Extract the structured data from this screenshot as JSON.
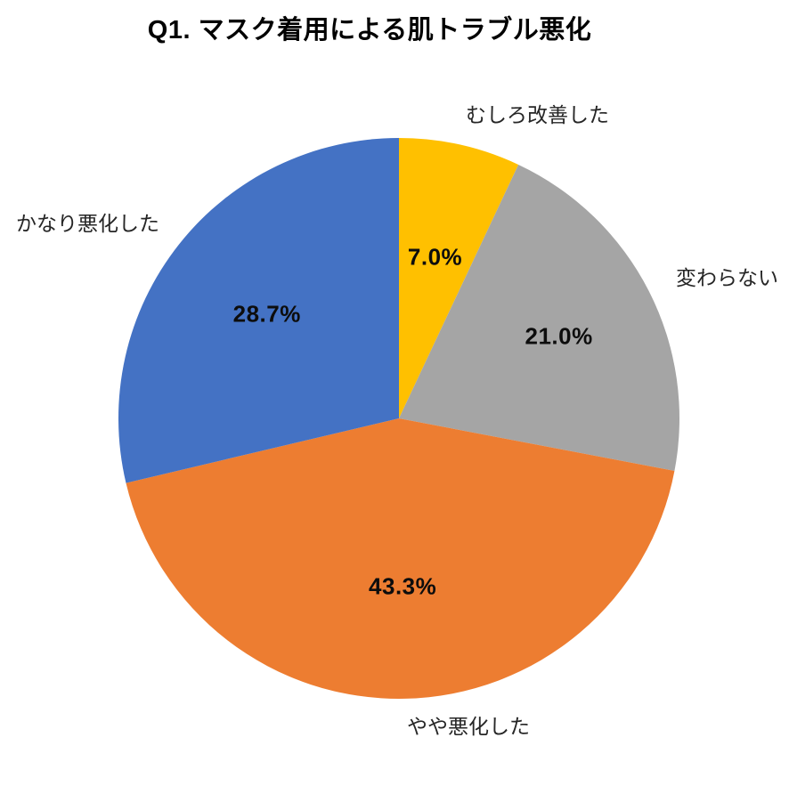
{
  "chart_data": {
    "type": "pie",
    "title": "Q1. マスク着用による肌トラブル悪化",
    "unit": "%",
    "start_angle_deg": 0,
    "direction": "clockwise",
    "legend": "none",
    "category_labels_position": "outside",
    "value_labels_position": "inside",
    "background_color": "#ffffff",
    "title_color": "#000000",
    "value_label_color": "#0d0d0d",
    "slices": [
      {
        "label": "むしろ改善した",
        "value": 7.0,
        "value_label": "7.0%",
        "color": "#FFC000"
      },
      {
        "label": "変わらない",
        "value": 21.0,
        "value_label": "21.0%",
        "color": "#A5A5A5"
      },
      {
        "label": "やや悪化した",
        "value": 43.3,
        "value_label": "43.3%",
        "color": "#ED7D31"
      },
      {
        "label": "かなり悪化した",
        "value": 28.7,
        "value_label": "28.7%",
        "color": "#4472C4"
      }
    ]
  }
}
